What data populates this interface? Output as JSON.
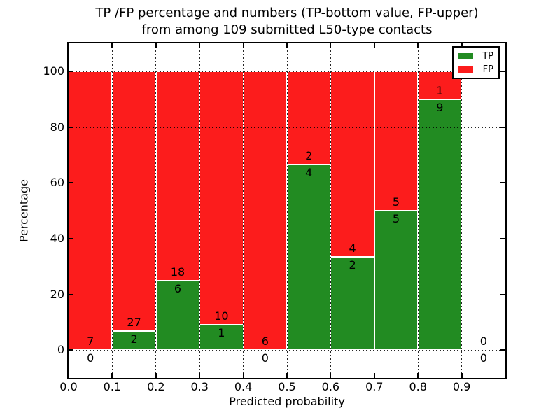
{
  "title": {
    "line1": "TP /FP percentage and numbers (TP-bottom value, FP-upper)",
    "line2": "from among 109 submitted L50-type contacts"
  },
  "axes": {
    "xlabel": "Predicted probability",
    "ylabel": "Percentage",
    "xtick_labels": [
      "0.0",
      "0.1",
      "0.2",
      "0.3",
      "0.4",
      "0.5",
      "0.6",
      "0.7",
      "0.8",
      "0.9"
    ],
    "ytick_labels": [
      "0",
      "20",
      "40",
      "60",
      "80",
      "100"
    ]
  },
  "legend": {
    "items": [
      {
        "label": "TP",
        "color": "#228b22"
      },
      {
        "label": "FP",
        "color": "#fc1c1c"
      }
    ]
  },
  "colors": {
    "tp": "#228b22",
    "fp": "#fc1c1c",
    "grid": "#000000",
    "background": "#ffffff"
  },
  "chart_data": {
    "type": "bar",
    "stacked": true,
    "title": "TP /FP percentage and numbers (TP-bottom value, FP-upper) from among 109 submitted L50-type contacts",
    "xlabel": "Predicted probability",
    "ylabel": "Percentage",
    "xlim": [
      0.0,
      1.0
    ],
    "ylim": [
      -10,
      110
    ],
    "xticks": [
      0.0,
      0.1,
      0.2,
      0.3,
      0.4,
      0.5,
      0.6,
      0.7,
      0.8,
      0.9
    ],
    "yticks": [
      0,
      20,
      40,
      60,
      80,
      100
    ],
    "grid": true,
    "legend_position": "upper right",
    "total_contacts": 109,
    "note": "Each bin is drawn as a stacked bar normalized to 100%; TP (green) bottom segment height = tp/(tp+fp)*100, FP (red) on top. Counts are printed at the TP/FP boundary: FP count above, TP count below.",
    "bins": [
      {
        "range": [
          0.0,
          0.1
        ],
        "tp": 0,
        "fp": 7,
        "tp_pct": 0.0
      },
      {
        "range": [
          0.1,
          0.2
        ],
        "tp": 2,
        "fp": 27,
        "tp_pct": 6.9
      },
      {
        "range": [
          0.2,
          0.3
        ],
        "tp": 6,
        "fp": 18,
        "tp_pct": 25.0
      },
      {
        "range": [
          0.3,
          0.4
        ],
        "tp": 1,
        "fp": 10,
        "tp_pct": 9.09
      },
      {
        "range": [
          0.4,
          0.5
        ],
        "tp": 0,
        "fp": 6,
        "tp_pct": 0.0
      },
      {
        "range": [
          0.5,
          0.6
        ],
        "tp": 4,
        "fp": 2,
        "tp_pct": 66.67
      },
      {
        "range": [
          0.6,
          0.7
        ],
        "tp": 2,
        "fp": 4,
        "tp_pct": 33.33
      },
      {
        "range": [
          0.7,
          0.8
        ],
        "tp": 5,
        "fp": 5,
        "tp_pct": 50.0
      },
      {
        "range": [
          0.8,
          0.9
        ],
        "tp": 9,
        "fp": 1,
        "tp_pct": 90.0
      },
      {
        "range": [
          0.9,
          1.0
        ],
        "tp": 0,
        "fp": 0,
        "tp_pct": 0.0
      }
    ]
  }
}
